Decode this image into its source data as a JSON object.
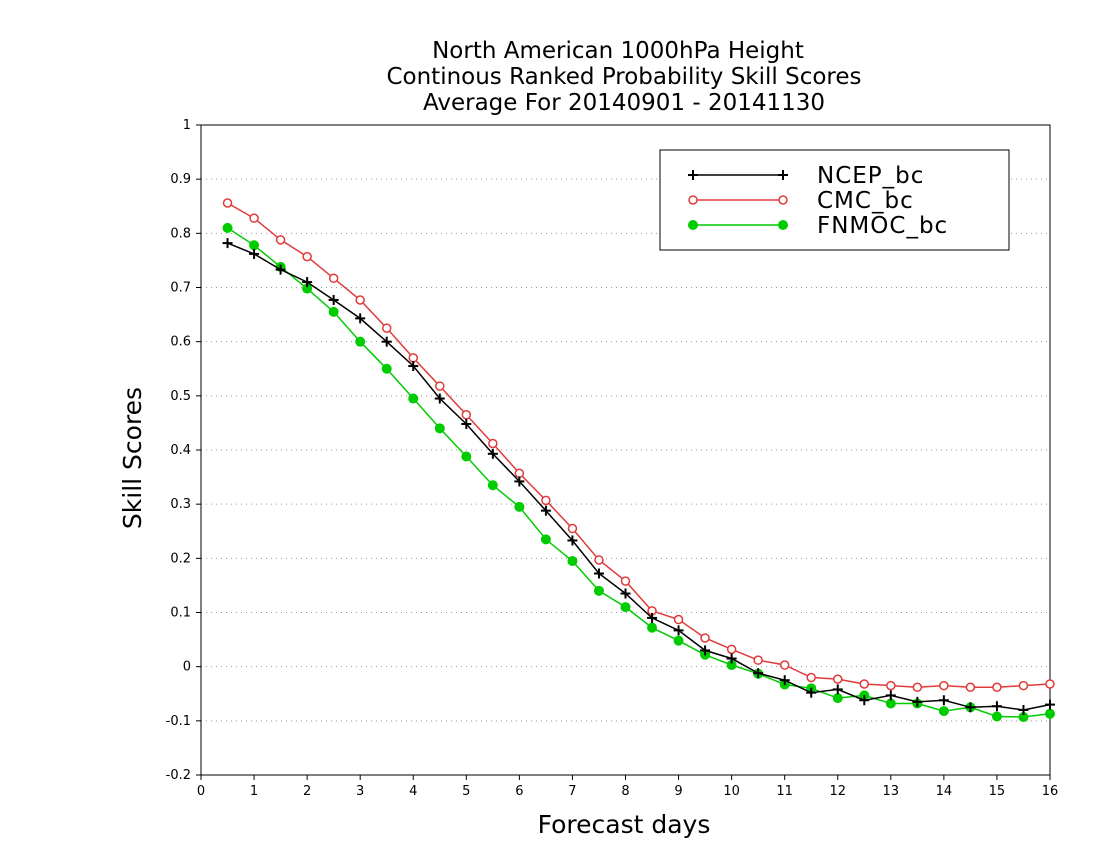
{
  "chart_data": {
    "type": "line",
    "title": [
      "North American 1000hPa Height",
      "Continous Ranked Probability Skill Scores",
      "Average For 20140901 - 20141130"
    ],
    "xlabel": "Forecast days",
    "ylabel": "Skill Scores",
    "xlim": [
      0,
      16
    ],
    "ylim": [
      -0.2,
      1
    ],
    "xticks": [
      "0",
      "1",
      "2",
      "3",
      "4",
      "5",
      "6",
      "7",
      "8",
      "9",
      "10",
      "11",
      "12",
      "13",
      "14",
      "15",
      "16"
    ],
    "yticks": [
      "-0.2",
      "-0.1",
      "0",
      "0.1",
      "0.2",
      "0.3",
      "0.4",
      "0.5",
      "0.6",
      "0.7",
      "0.8",
      "0.9",
      "1"
    ],
    "grid": "horizontal dotted",
    "legend_position": "top-right",
    "x": [
      0.5,
      1,
      1.5,
      2,
      2.5,
      3,
      3.5,
      4,
      4.5,
      5,
      5.5,
      6,
      6.5,
      7,
      7.5,
      8,
      8.5,
      9,
      9.5,
      10,
      10.5,
      11,
      11.5,
      12,
      12.5,
      13,
      13.5,
      14,
      14.5,
      15,
      15.5,
      16
    ],
    "series": [
      {
        "name": "NCEP_bc",
        "color": "#000000",
        "marker": "plus",
        "values": [
          0.782,
          0.762,
          0.733,
          0.71,
          0.677,
          0.643,
          0.6,
          0.555,
          0.495,
          0.448,
          0.393,
          0.342,
          0.288,
          0.233,
          0.172,
          0.135,
          0.09,
          0.067,
          0.03,
          0.015,
          -0.012,
          -0.025,
          -0.048,
          -0.042,
          -0.062,
          -0.053,
          -0.065,
          -0.062,
          -0.075,
          -0.073,
          -0.08,
          -0.07
        ]
      },
      {
        "name": "CMC_bc",
        "color": "#e03a3a",
        "marker": "open-circle",
        "values": [
          0.856,
          0.828,
          0.788,
          0.757,
          0.717,
          0.677,
          0.625,
          0.57,
          0.518,
          0.465,
          0.412,
          0.357,
          0.307,
          0.255,
          0.197,
          0.158,
          0.103,
          0.087,
          0.053,
          0.032,
          0.012,
          0.003,
          -0.02,
          -0.023,
          -0.032,
          -0.035,
          -0.038,
          -0.035,
          -0.038,
          -0.038,
          -0.035,
          -0.032
        ]
      },
      {
        "name": "FNMOC_bc",
        "color": "#00cc00",
        "marker": "filled-circle",
        "values": [
          0.81,
          0.778,
          0.738,
          0.698,
          0.655,
          0.6,
          0.55,
          0.495,
          0.44,
          0.388,
          0.335,
          0.295,
          0.235,
          0.195,
          0.14,
          0.11,
          0.072,
          0.048,
          0.022,
          0.003,
          -0.013,
          -0.033,
          -0.04,
          -0.058,
          -0.053,
          -0.068,
          -0.068,
          -0.082,
          -0.075,
          -0.092,
          -0.093,
          -0.087
        ]
      }
    ]
  }
}
